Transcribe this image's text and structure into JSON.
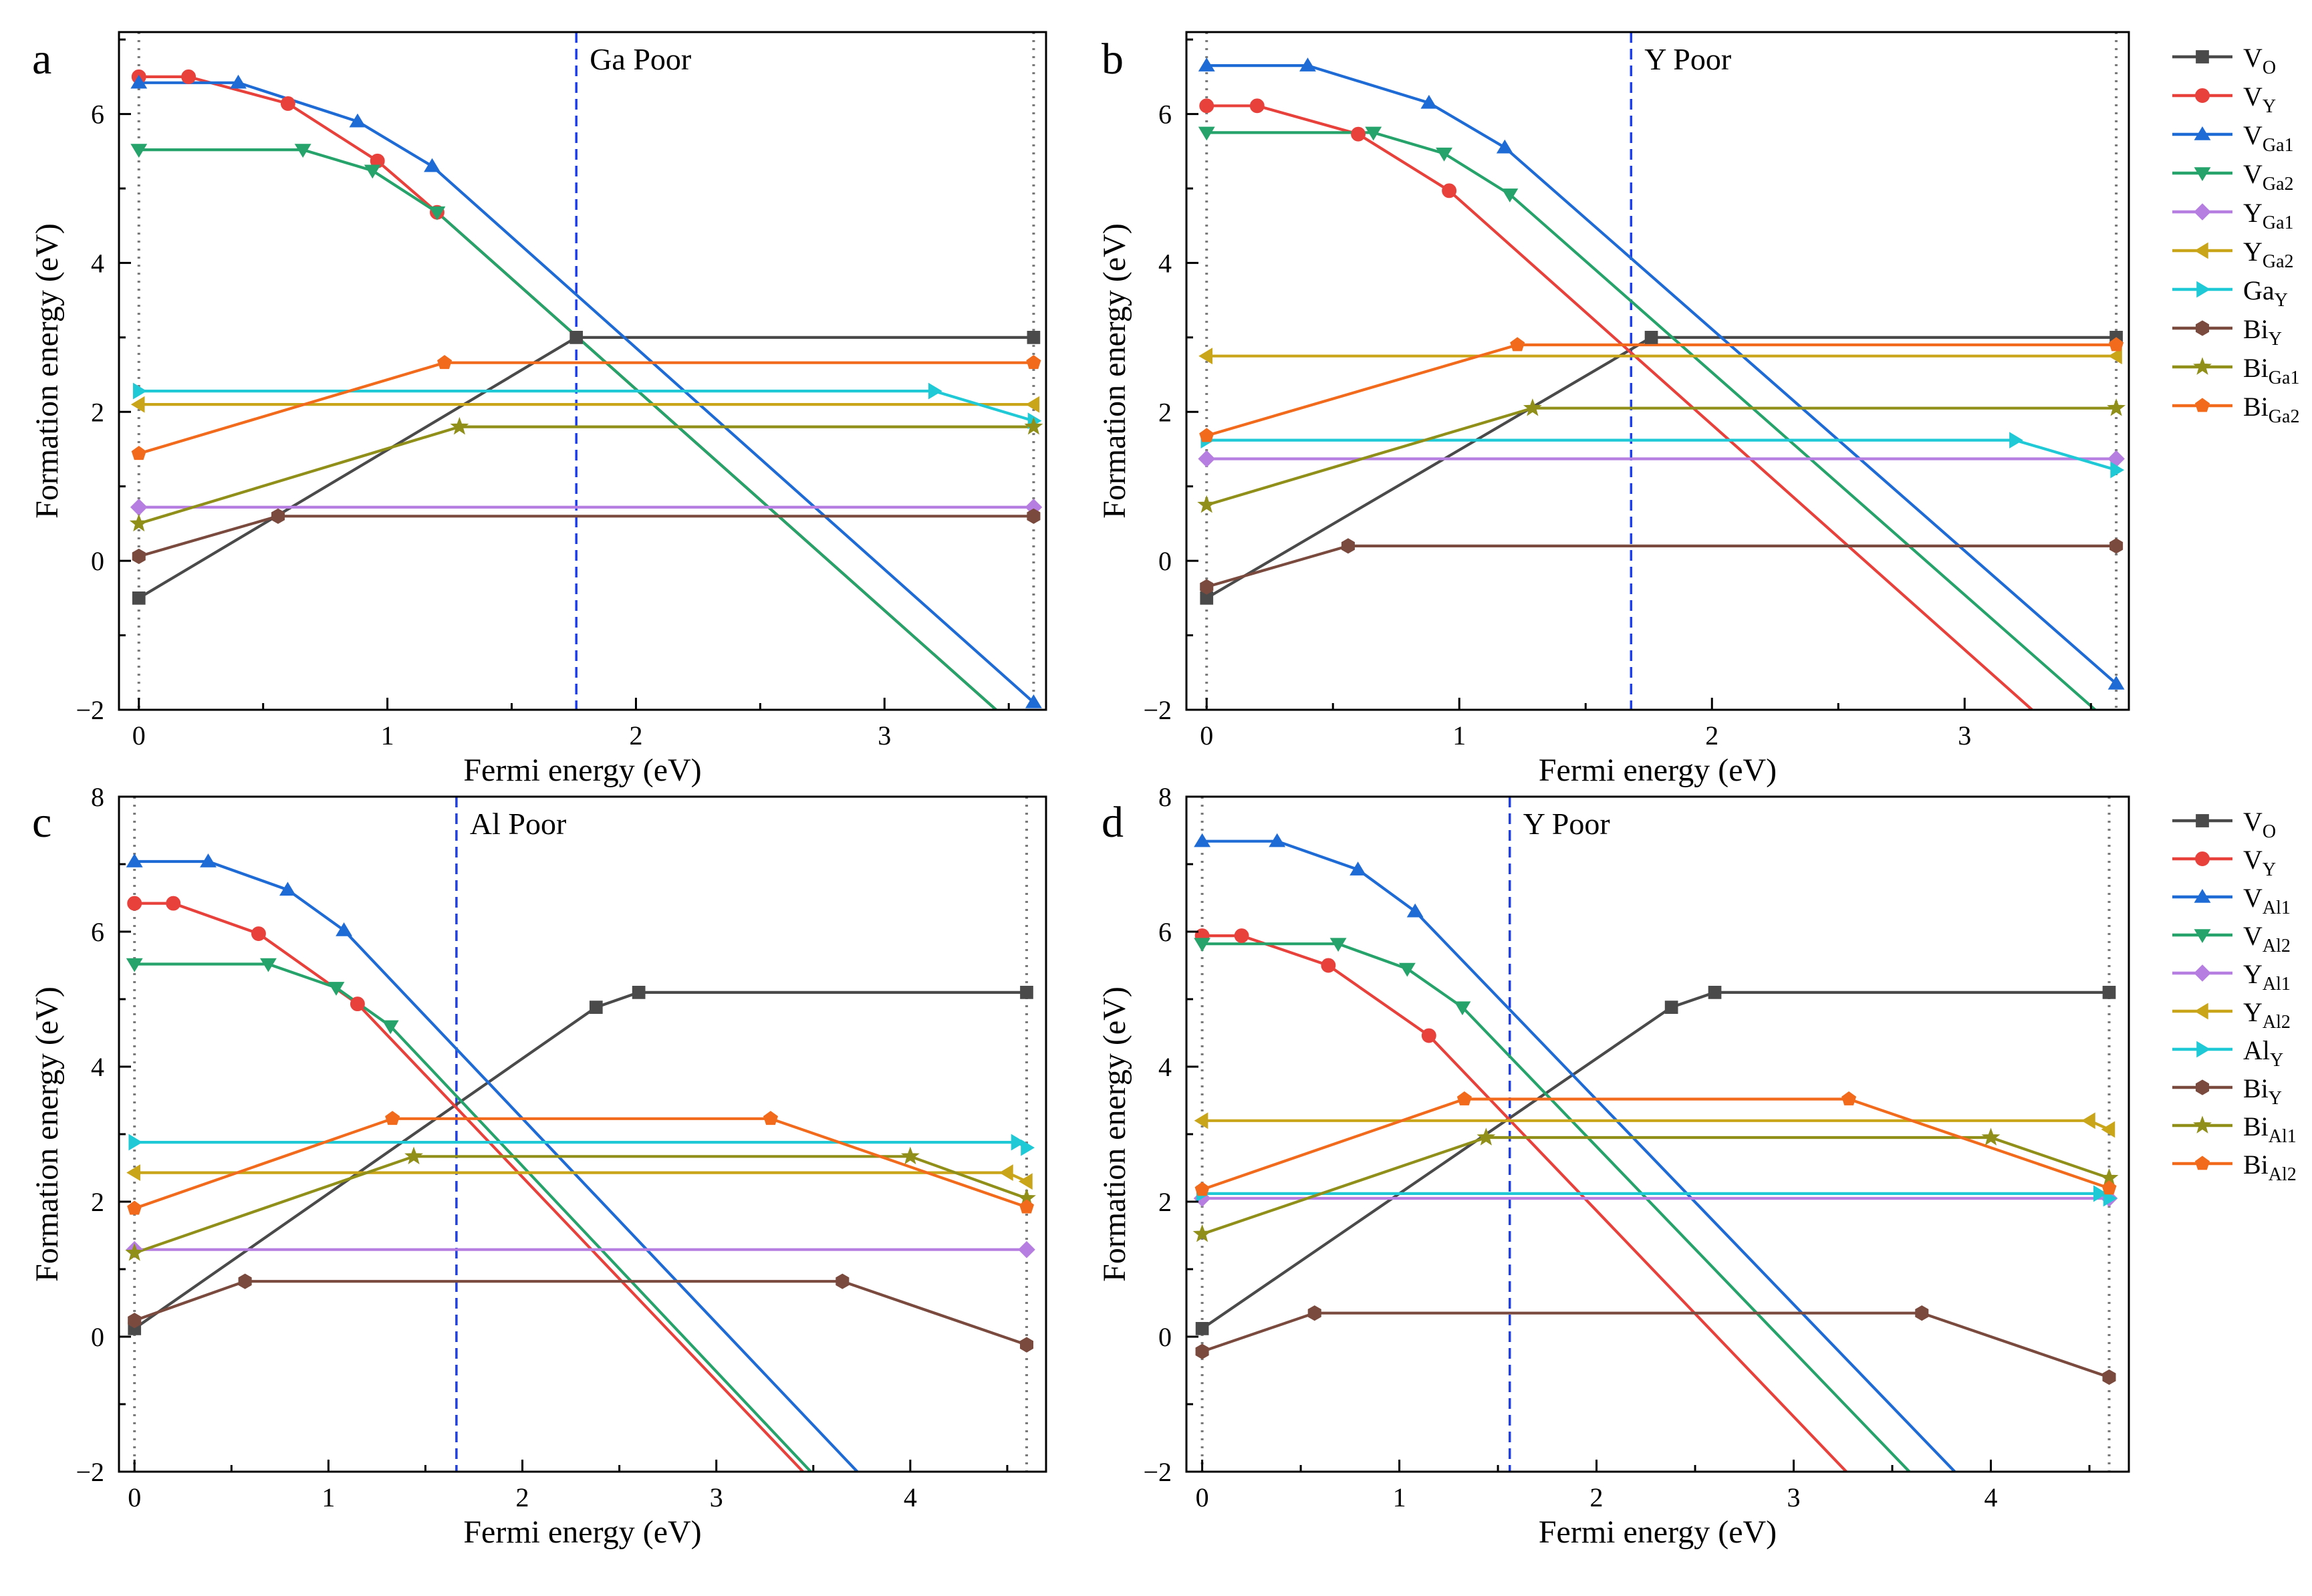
{
  "figure": {
    "legend_top": [
      {
        "key": "VO",
        "base": "V",
        "sub": "O",
        "color": "#4a4a4a",
        "marker": "square"
      },
      {
        "key": "VY",
        "base": "V",
        "sub": "Y",
        "color": "#e8413c",
        "marker": "circle"
      },
      {
        "key": "VGa1",
        "base": "V",
        "sub": "Ga1",
        "color": "#1f6bd6",
        "marker": "triangle-up"
      },
      {
        "key": "VGa2",
        "base": "V",
        "sub": "Ga2",
        "color": "#25a36a",
        "marker": "triangle-down"
      },
      {
        "key": "YGa1",
        "base": "Y",
        "sub": "Ga1",
        "color": "#b57ee0",
        "marker": "diamond"
      },
      {
        "key": "YGa2",
        "base": "Y",
        "sub": "Ga2",
        "color": "#c9a51a",
        "marker": "triangle-left"
      },
      {
        "key": "GaY",
        "base": "Ga",
        "sub": "Y",
        "color": "#1fc9d6",
        "marker": "triangle-right"
      },
      {
        "key": "BiY",
        "base": "Bi",
        "sub": "Y",
        "color": "#7a4a3e",
        "marker": "hexagon"
      },
      {
        "key": "BiGa1",
        "base": "Bi",
        "sub": "Ga1",
        "color": "#8f8f1a",
        "marker": "star"
      },
      {
        "key": "BiGa2",
        "base": "Bi",
        "sub": "Ga2",
        "color": "#f26a1b",
        "marker": "pentagon"
      }
    ],
    "legend_bottom": [
      {
        "key": "VO",
        "base": "V",
        "sub": "O",
        "color": "#4a4a4a",
        "marker": "square"
      },
      {
        "key": "VY",
        "base": "V",
        "sub": "Y",
        "color": "#e8413c",
        "marker": "circle"
      },
      {
        "key": "VAl1",
        "base": "V",
        "sub": "Al1",
        "color": "#1f6bd6",
        "marker": "triangle-up"
      },
      {
        "key": "VAl2",
        "base": "V",
        "sub": "Al2",
        "color": "#25a36a",
        "marker": "triangle-down"
      },
      {
        "key": "YAl1",
        "base": "Y",
        "sub": "Al1",
        "color": "#b57ee0",
        "marker": "diamond"
      },
      {
        "key": "YAl2",
        "base": "Y",
        "sub": "Al2",
        "color": "#c9a51a",
        "marker": "triangle-left"
      },
      {
        "key": "AlY",
        "base": "Al",
        "sub": "Y",
        "color": "#1fc9d6",
        "marker": "triangle-right"
      },
      {
        "key": "BiY",
        "base": "Bi",
        "sub": "Y",
        "color": "#7a4a3e",
        "marker": "hexagon"
      },
      {
        "key": "BiAl1",
        "base": "Bi",
        "sub": "Al1",
        "color": "#8f8f1a",
        "marker": "star"
      },
      {
        "key": "BiAl2",
        "base": "Bi",
        "sub": "Al2",
        "color": "#f26a1b",
        "marker": "pentagon"
      }
    ]
  },
  "chart_data": [
    {
      "panel": "a",
      "type": "line",
      "title": "Ga Poor",
      "xlabel": "Fermi energy (eV)",
      "ylabel": "Formation energy (eV)",
      "xlim": [
        -0.08,
        3.65
      ],
      "ylim": [
        -2,
        7.1
      ],
      "xticks": [
        0,
        1,
        2,
        3
      ],
      "yticks": [
        -2,
        0,
        2,
        4,
        6
      ],
      "gap_lines": [
        0,
        3.6
      ],
      "fermi_line": 1.76,
      "series": [
        {
          "name": "VO",
          "points": [
            [
              0,
              -0.5
            ],
            [
              1.76,
              3.0
            ],
            [
              3.6,
              3.0
            ]
          ]
        },
        {
          "name": "VY",
          "points": [
            [
              0,
              6.5
            ],
            [
              0.2,
              6.5
            ],
            [
              0.6,
              6.14
            ],
            [
              0.96,
              5.37
            ],
            [
              1.2,
              4.68
            ],
            [
              3.55,
              -2.3
            ]
          ]
        },
        {
          "name": "VGa1",
          "points": [
            [
              0,
              6.42
            ],
            [
              0.4,
              6.42
            ],
            [
              0.88,
              5.9
            ],
            [
              1.18,
              5.3
            ],
            [
              3.6,
              -1.9
            ]
          ]
        },
        {
          "name": "VGa2",
          "points": [
            [
              0,
              5.52
            ],
            [
              0.66,
              5.52
            ],
            [
              0.94,
              5.24
            ],
            [
              1.2,
              4.68
            ],
            [
              3.55,
              -2.3
            ]
          ]
        },
        {
          "name": "YGa1",
          "points": [
            [
              0,
              0.72
            ],
            [
              3.6,
              0.72
            ]
          ]
        },
        {
          "name": "YGa2",
          "points": [
            [
              0,
              2.1
            ],
            [
              3.6,
              2.1
            ]
          ]
        },
        {
          "name": "GaY",
          "points": [
            [
              0,
              2.28
            ],
            [
              3.2,
              2.28
            ],
            [
              3.6,
              1.88
            ]
          ]
        },
        {
          "name": "BiY",
          "points": [
            [
              0,
              0.06
            ],
            [
              0.56,
              0.6
            ],
            [
              3.6,
              0.6
            ]
          ]
        },
        {
          "name": "BiGa1",
          "points": [
            [
              0,
              0.5
            ],
            [
              1.29,
              1.8
            ],
            [
              3.6,
              1.8
            ]
          ]
        },
        {
          "name": "BiGa2",
          "points": [
            [
              0,
              1.44
            ],
            [
              1.23,
              2.66
            ],
            [
              3.6,
              2.66
            ]
          ]
        }
      ]
    },
    {
      "panel": "b",
      "type": "line",
      "title": "Y Poor",
      "xlabel": "Fermi energy (eV)",
      "ylabel": "Formation energy (eV)",
      "xlim": [
        -0.08,
        3.65
      ],
      "ylim": [
        -2,
        7.1
      ],
      "xticks": [
        0,
        1,
        2,
        3
      ],
      "yticks": [
        -2,
        0,
        2,
        4,
        6
      ],
      "gap_lines": [
        0,
        3.6
      ],
      "fermi_line": 1.68,
      "series": [
        {
          "name": "VO",
          "points": [
            [
              0,
              -0.5
            ],
            [
              1.76,
              3.0
            ],
            [
              3.6,
              3.0
            ]
          ]
        },
        {
          "name": "VY",
          "points": [
            [
              0,
              6.11
            ],
            [
              0.2,
              6.11
            ],
            [
              0.6,
              5.73
            ],
            [
              0.96,
              4.97
            ],
            [
              3.3,
              -2.1
            ]
          ]
        },
        {
          "name": "VGa1",
          "points": [
            [
              0,
              6.65
            ],
            [
              0.4,
              6.65
            ],
            [
              0.88,
              6.15
            ],
            [
              1.18,
              5.55
            ],
            [
              3.6,
              -1.65
            ]
          ]
        },
        {
          "name": "VGa2",
          "points": [
            [
              0,
              5.75
            ],
            [
              0.66,
              5.75
            ],
            [
              0.94,
              5.47
            ],
            [
              1.2,
              4.92
            ],
            [
              3.55,
              -2.1
            ]
          ]
        },
        {
          "name": "YGa1",
          "points": [
            [
              0,
              1.37
            ],
            [
              3.6,
              1.37
            ]
          ]
        },
        {
          "name": "YGa2",
          "points": [
            [
              0,
              2.75
            ],
            [
              3.6,
              2.75
            ]
          ]
        },
        {
          "name": "GaY",
          "points": [
            [
              0,
              1.62
            ],
            [
              3.2,
              1.62
            ],
            [
              3.6,
              1.22
            ]
          ]
        },
        {
          "name": "BiY",
          "points": [
            [
              0,
              -0.35
            ],
            [
              0.56,
              0.2
            ],
            [
              3.6,
              0.2
            ]
          ]
        },
        {
          "name": "BiGa1",
          "points": [
            [
              0,
              0.75
            ],
            [
              1.29,
              2.05
            ],
            [
              3.6,
              2.05
            ]
          ]
        },
        {
          "name": "BiGa2",
          "points": [
            [
              0,
              1.68
            ],
            [
              1.23,
              2.9
            ],
            [
              3.6,
              2.9
            ]
          ]
        }
      ]
    },
    {
      "panel": "c",
      "type": "line",
      "title": "Al Poor",
      "xlabel": "Fermi energy (eV)",
      "ylabel": "Formation energy (eV)",
      "xlim": [
        -0.08,
        4.7
      ],
      "ylim": [
        -2,
        8
      ],
      "xticks": [
        0,
        1,
        2,
        3,
        4
      ],
      "yticks": [
        -2,
        0,
        2,
        4,
        6,
        8
      ],
      "gap_lines": [
        0,
        4.6
      ],
      "fermi_line": 1.66,
      "series": [
        {
          "name": "VO",
          "points": [
            [
              0,
              0.12
            ],
            [
              2.38,
              4.88
            ],
            [
              2.6,
              5.1
            ],
            [
              4.6,
              5.1
            ]
          ]
        },
        {
          "name": "VY",
          "points": [
            [
              0,
              6.42
            ],
            [
              0.2,
              6.42
            ],
            [
              0.64,
              5.97
            ],
            [
              1.15,
              4.93
            ],
            [
              3.48,
              -2.1
            ]
          ]
        },
        {
          "name": "VAl1",
          "points": [
            [
              0,
              7.04
            ],
            [
              0.38,
              7.04
            ],
            [
              0.79,
              6.62
            ],
            [
              1.08,
              6.02
            ],
            [
              3.76,
              -2.1
            ]
          ]
        },
        {
          "name": "VAl2",
          "points": [
            [
              0,
              5.52
            ],
            [
              0.69,
              5.52
            ],
            [
              1.04,
              5.17
            ],
            [
              1.32,
              4.6
            ],
            [
              3.52,
              -2.1
            ]
          ]
        },
        {
          "name": "YAl1",
          "points": [
            [
              0,
              1.29
            ],
            [
              4.6,
              1.29
            ]
          ]
        },
        {
          "name": "YAl2",
          "points": [
            [
              0,
              2.43
            ],
            [
              4.5,
              2.43
            ],
            [
              4.6,
              2.3
            ]
          ]
        },
        {
          "name": "AlY",
          "points": [
            [
              0,
              2.88
            ],
            [
              4.55,
              2.88
            ],
            [
              4.6,
              2.8
            ]
          ]
        },
        {
          "name": "BiY",
          "points": [
            [
              0,
              0.24
            ],
            [
              0.57,
              0.82
            ],
            [
              3.65,
              0.82
            ],
            [
              4.6,
              -0.12
            ]
          ]
        },
        {
          "name": "BiAl1",
          "points": [
            [
              0,
              1.24
            ],
            [
              1.44,
              2.67
            ],
            [
              4.0,
              2.67
            ],
            [
              4.6,
              2.05
            ]
          ]
        },
        {
          "name": "BiAl2",
          "points": [
            [
              0,
              1.9
            ],
            [
              1.33,
              3.23
            ],
            [
              3.28,
              3.23
            ],
            [
              4.6,
              1.92
            ]
          ]
        }
      ]
    },
    {
      "panel": "d",
      "type": "line",
      "title": "Y Poor",
      "xlabel": "Fermi energy (eV)",
      "ylabel": "Formation energy (eV)",
      "xlim": [
        -0.08,
        4.7
      ],
      "ylim": [
        -2,
        8
      ],
      "xticks": [
        0,
        1,
        2,
        3,
        4
      ],
      "yticks": [
        -2,
        0,
        2,
        4,
        6,
        8
      ],
      "gap_lines": [
        0,
        4.6
      ],
      "fermi_line": 1.56,
      "series": [
        {
          "name": "VO",
          "points": [
            [
              0,
              0.12
            ],
            [
              2.38,
              4.88
            ],
            [
              2.6,
              5.1
            ],
            [
              4.6,
              5.1
            ]
          ]
        },
        {
          "name": "VY",
          "points": [
            [
              0,
              5.94
            ],
            [
              0.2,
              5.94
            ],
            [
              0.64,
              5.5
            ],
            [
              1.15,
              4.46
            ],
            [
              3.3,
              -2.1
            ]
          ]
        },
        {
          "name": "VAl1",
          "points": [
            [
              0,
              7.34
            ],
            [
              0.38,
              7.34
            ],
            [
              0.79,
              6.92
            ],
            [
              1.08,
              6.3
            ],
            [
              3.85,
              -2.1
            ]
          ]
        },
        {
          "name": "VAl2",
          "points": [
            [
              0,
              5.82
            ],
            [
              0.69,
              5.82
            ],
            [
              1.04,
              5.45
            ],
            [
              1.32,
              4.88
            ],
            [
              3.62,
              -2.1
            ]
          ]
        },
        {
          "name": "YAl1",
          "points": [
            [
              0,
              2.05
            ],
            [
              4.6,
              2.05
            ]
          ]
        },
        {
          "name": "YAl2",
          "points": [
            [
              0,
              3.2
            ],
            [
              4.5,
              3.2
            ],
            [
              4.6,
              3.07
            ]
          ]
        },
        {
          "name": "AlY",
          "points": [
            [
              0,
              2.12
            ],
            [
              4.55,
              2.12
            ],
            [
              4.6,
              2.05
            ]
          ]
        },
        {
          "name": "BiY",
          "points": [
            [
              0,
              -0.22
            ],
            [
              0.57,
              0.35
            ],
            [
              3.65,
              0.35
            ],
            [
              4.6,
              -0.6
            ]
          ]
        },
        {
          "name": "BiAl1",
          "points": [
            [
              0,
              1.52
            ],
            [
              1.44,
              2.95
            ],
            [
              4.0,
              2.95
            ],
            [
              4.6,
              2.35
            ]
          ]
        },
        {
          "name": "BiAl2",
          "points": [
            [
              0,
              2.18
            ],
            [
              1.33,
              3.52
            ],
            [
              3.28,
              3.52
            ],
            [
              4.6,
              2.2
            ]
          ]
        }
      ]
    }
  ]
}
